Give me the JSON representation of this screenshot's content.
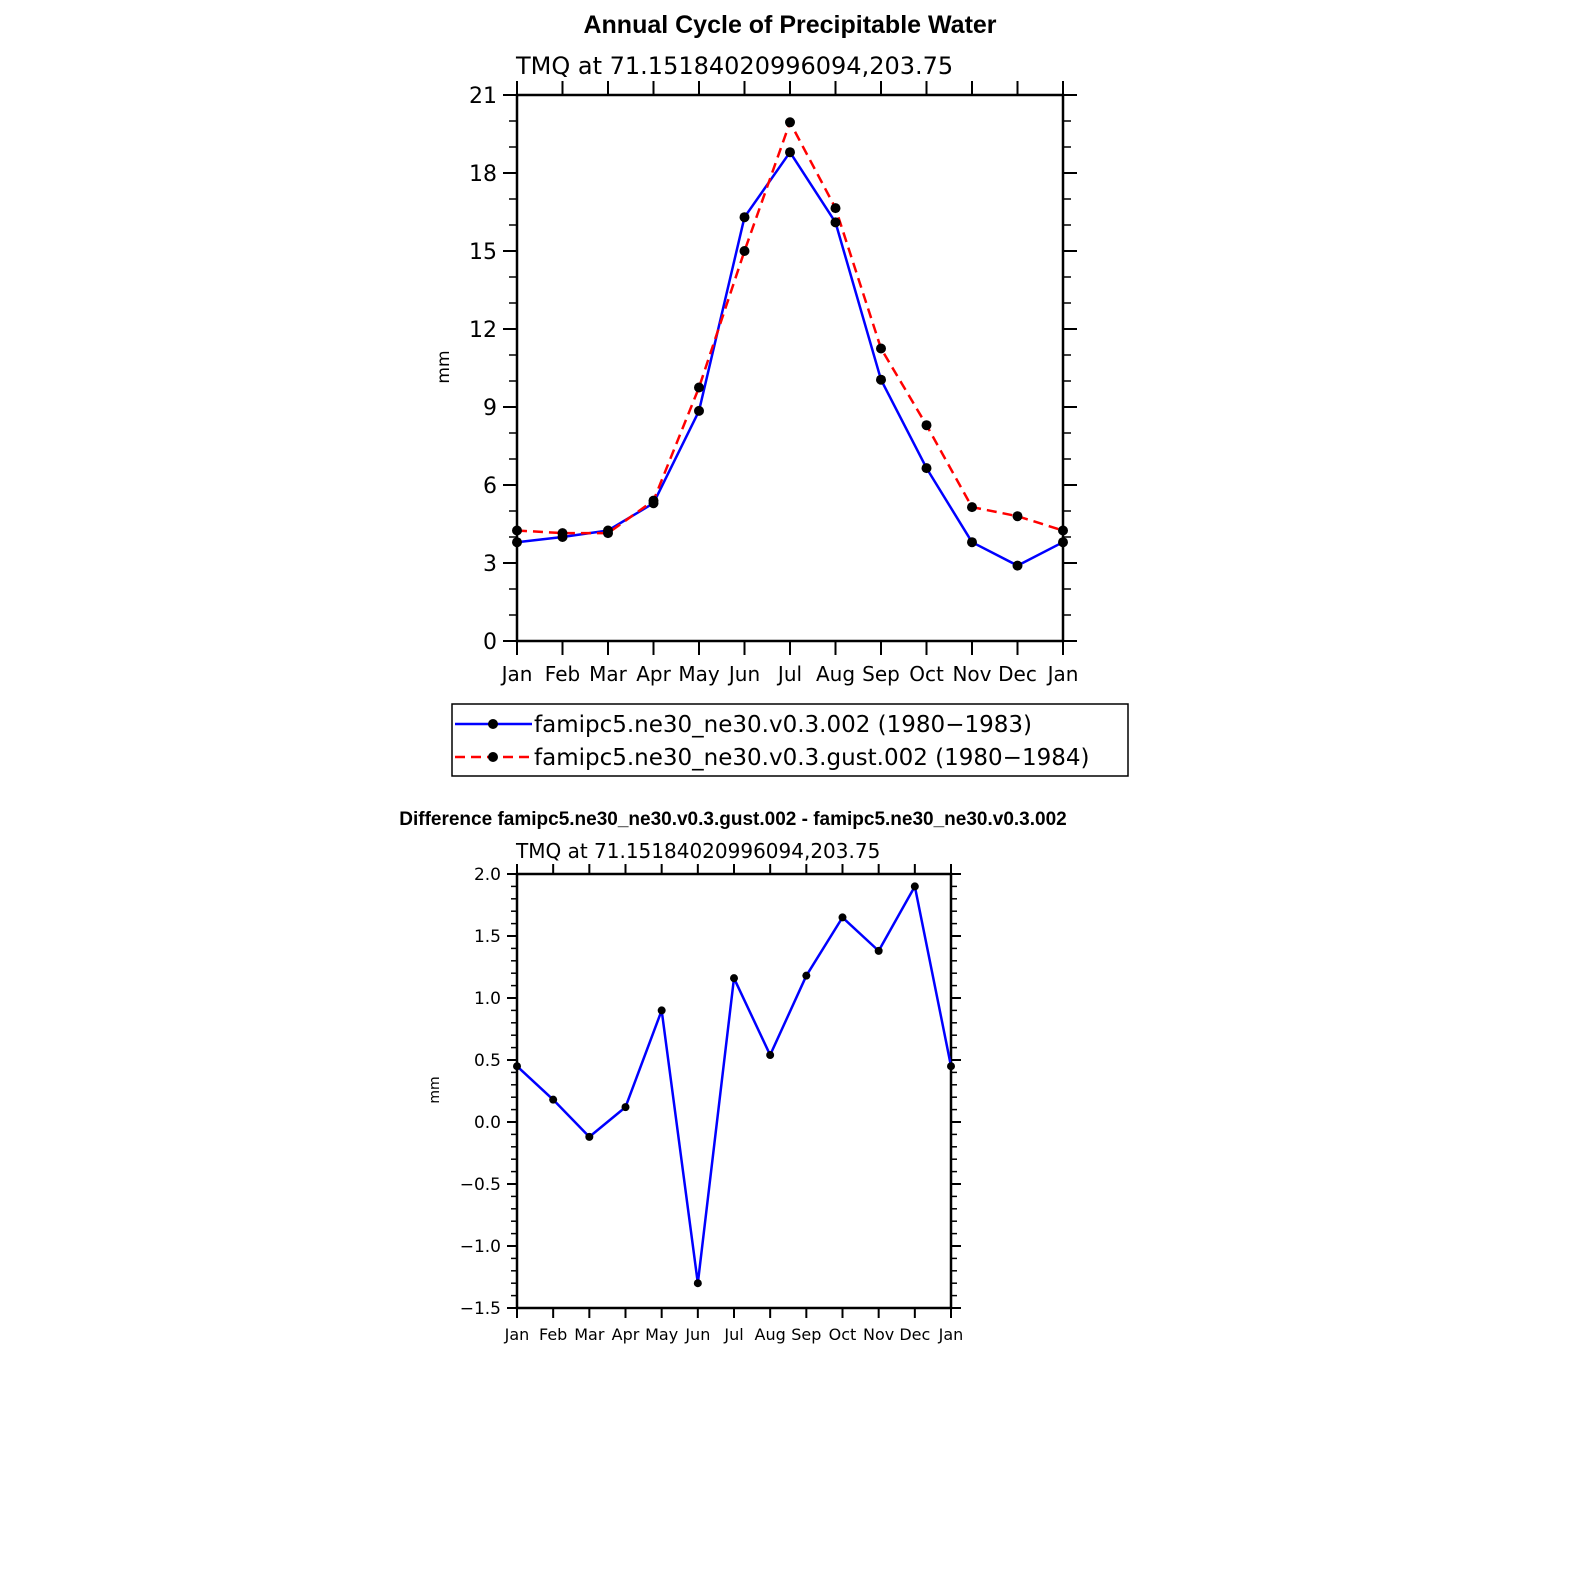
{
  "chart_data": [
    {
      "type": "line",
      "title": "Annual Cycle of Precipitable Water",
      "subtitle": "TMQ at 71.15184020996094,203.75",
      "xlabel": "",
      "ylabel": "mm",
      "categories": [
        "Jan",
        "Feb",
        "Mar",
        "Apr",
        "May",
        "Jun",
        "Jul",
        "Aug",
        "Sep",
        "Oct",
        "Nov",
        "Dec",
        "Jan"
      ],
      "ylim": [
        0,
        21
      ],
      "yticks": [
        "0",
        "3",
        "6",
        "9",
        "12",
        "15",
        "18",
        "21"
      ],
      "ytick_values": [
        0,
        3,
        6,
        9,
        12,
        15,
        18,
        21
      ],
      "grid": false,
      "legend": "below",
      "series": [
        {
          "name": "famipc5.ne30_ne30.v0.3.002 (1980−1983)",
          "color": "#0000ff",
          "dash": "solid",
          "values": [
            3.8,
            4.0,
            4.25,
            5.3,
            8.85,
            16.3,
            18.8,
            16.1,
            10.05,
            6.65,
            3.8,
            2.9,
            3.8
          ]
        },
        {
          "name": "famipc5.ne30_ne30.v0.3.gust.002 (1980−1984)",
          "color": "#ff0000",
          "dash": "dashed",
          "values": [
            4.25,
            4.15,
            4.15,
            5.4,
            9.75,
            15.0,
            19.95,
            16.65,
            11.25,
            8.3,
            5.15,
            4.8,
            4.25
          ]
        }
      ]
    },
    {
      "type": "line",
      "title": "Difference famipc5.ne30_ne30.v0.3.gust.002 - famipc5.ne30_ne30.v0.3.002",
      "subtitle": "TMQ at 71.15184020996094,203.75",
      "xlabel": "",
      "ylabel": "mm",
      "categories": [
        "Jan",
        "Feb",
        "Mar",
        "Apr",
        "May",
        "Jun",
        "Jul",
        "Aug",
        "Sep",
        "Oct",
        "Nov",
        "Dec",
        "Jan"
      ],
      "ylim": [
        -1.5,
        2.0
      ],
      "yticks": [
        "−1.5",
        "−1.0",
        "−0.5",
        "0.0",
        "0.5",
        "1.0",
        "1.5",
        "2.0"
      ],
      "ytick_values": [
        -1.5,
        -1.0,
        -0.5,
        0.0,
        0.5,
        1.0,
        1.5,
        2.0
      ],
      "grid": false,
      "series": [
        {
          "name": "difference",
          "color": "#0000ff",
          "dash": "solid",
          "values": [
            0.45,
            0.18,
            -0.12,
            0.12,
            0.9,
            -1.3,
            1.16,
            0.54,
            1.18,
            1.65,
            1.38,
            1.9,
            0.45
          ]
        }
      ]
    }
  ]
}
